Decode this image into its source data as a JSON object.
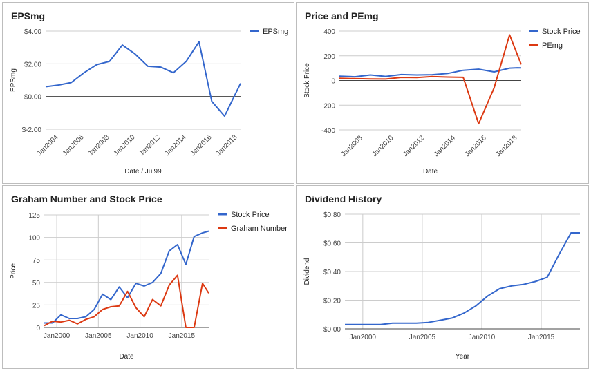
{
  "colors": {
    "blue": "#3366cc",
    "red": "#dc3912",
    "grid": "#cccccc",
    "zero": "#444444"
  },
  "chart_data": [
    {
      "id": "eps",
      "type": "line",
      "title": "EPSmg",
      "xlabel": "Date / Jul99",
      "ylabel": "EPSmg",
      "xlim": [
        2003.0,
        2018.25
      ],
      "ylim": [
        -2,
        4
      ],
      "yticks": [
        {
          "v": 4,
          "label": "$4.00"
        },
        {
          "v": 2,
          "label": "$2.00"
        },
        {
          "v": 0,
          "label": "$0.00"
        },
        {
          "v": -2,
          "label": "$-2.00"
        }
      ],
      "xticks": [
        {
          "v": 2004,
          "label": "Jan2004"
        },
        {
          "v": 2006,
          "label": "Jan2006"
        },
        {
          "v": 2008,
          "label": "Jan2008"
        },
        {
          "v": 2010,
          "label": "Jan2010"
        },
        {
          "v": 2012,
          "label": "Jan2012"
        },
        {
          "v": 2014,
          "label": "Jan2014"
        },
        {
          "v": 2016,
          "label": "Jan2016"
        },
        {
          "v": 2018,
          "label": "Jan2018"
        }
      ],
      "rotate_xticks": true,
      "vgrid": false,
      "zero_line": true,
      "legend": "right",
      "series": [
        {
          "name": "EPSmg",
          "color": "#3366cc",
          "x": [
            2003,
            2004,
            2005,
            2006,
            2007,
            2008,
            2009,
            2010,
            2011,
            2012,
            2013,
            2014,
            2015,
            2016,
            2017,
            2018.25
          ],
          "y": [
            0.6,
            0.7,
            0.85,
            1.45,
            1.95,
            2.15,
            3.15,
            2.6,
            1.85,
            1.8,
            1.45,
            2.15,
            3.35,
            -0.3,
            -1.2,
            0.8
          ]
        }
      ]
    },
    {
      "id": "pe",
      "type": "line",
      "title": "Price and PEmg",
      "xlabel": "Date",
      "ylabel": "Stock Price",
      "xlim": [
        2006.5,
        2018.25
      ],
      "ylim": [
        -400,
        400
      ],
      "yticks": [
        {
          "v": 400,
          "label": "400"
        },
        {
          "v": 200,
          "label": "200"
        },
        {
          "v": 0,
          "label": "0"
        },
        {
          "v": -200,
          "label": "-200"
        },
        {
          "v": -400,
          "label": "-400"
        }
      ],
      "xticks": [
        {
          "v": 2008,
          "label": "Jan2008"
        },
        {
          "v": 2010,
          "label": "Jan2010"
        },
        {
          "v": 2012,
          "label": "Jan2012"
        },
        {
          "v": 2014,
          "label": "Jan2014"
        },
        {
          "v": 2016,
          "label": "Jan2016"
        },
        {
          "v": 2018,
          "label": "Jan2018"
        }
      ],
      "rotate_xticks": true,
      "vgrid": false,
      "zero_line": true,
      "legend": "right",
      "series": [
        {
          "name": "Stock Price",
          "color": "#3366cc",
          "x": [
            2006.5,
            2007.5,
            2008.5,
            2009.5,
            2010.5,
            2011.5,
            2012.5,
            2013.5,
            2014.5,
            2015.5,
            2016.5,
            2017.5,
            2018,
            2018.25
          ],
          "y": [
            35,
            30,
            45,
            33,
            48,
            45,
            47,
            57,
            83,
            92,
            70,
            100,
            103,
            102
          ]
        },
        {
          "name": "PEmg",
          "color": "#dc3912",
          "x": [
            2006.5,
            2007.5,
            2008.5,
            2009.5,
            2010.5,
            2011.5,
            2012.5,
            2013.5,
            2014.5,
            2015.5,
            2016.5,
            2017.5,
            2018.25
          ],
          "y": [
            18,
            15,
            13,
            12,
            25,
            24,
            32,
            28,
            26,
            -350,
            -60,
            370,
            130
          ]
        }
      ]
    },
    {
      "id": "graham",
      "type": "line",
      "title": "Graham Number and Stock Price",
      "xlabel": "Date",
      "ylabel": "Price",
      "xlim": [
        1998.5,
        2018.25
      ],
      "ylim": [
        0,
        125
      ],
      "yticks": [
        {
          "v": 125,
          "label": "125"
        },
        {
          "v": 100,
          "label": "100"
        },
        {
          "v": 75,
          "label": "75"
        },
        {
          "v": 50,
          "label": "50"
        },
        {
          "v": 25,
          "label": "25"
        },
        {
          "v": 0,
          "label": "0"
        }
      ],
      "xticks": [
        {
          "v": 2000,
          "label": "Jan2000"
        },
        {
          "v": 2005,
          "label": "Jan2005"
        },
        {
          "v": 2010,
          "label": "Jan2010"
        },
        {
          "v": 2015,
          "label": "Jan2015"
        }
      ],
      "rotate_xticks": false,
      "vgrid": true,
      "zero_line": false,
      "legend": "right",
      "series": [
        {
          "name": "Stock Price",
          "color": "#3366cc",
          "x": [
            1998.5,
            1999.5,
            2000.5,
            2001.5,
            2002.5,
            2003.5,
            2004.5,
            2005.5,
            2006.5,
            2007.5,
            2008.5,
            2009.5,
            2010.5,
            2011.5,
            2012.5,
            2013.5,
            2014.5,
            2015.5,
            2016.5,
            2017.5,
            2018.25
          ],
          "y": [
            5,
            5,
            14,
            10,
            10,
            12,
            20,
            37,
            31,
            45,
            33,
            49,
            46,
            50,
            60,
            85,
            92,
            70,
            101,
            105,
            107
          ]
        },
        {
          "name": "Graham Number",
          "color": "#dc3912",
          "x": [
            1998.5,
            1999.5,
            2000.5,
            2001.5,
            2002.5,
            2003.5,
            2004.5,
            2005.5,
            2006.5,
            2007.5,
            2008.5,
            2009.5,
            2010.5,
            2011.5,
            2012.5,
            2013.5,
            2014.5,
            2015.5,
            2016.5,
            2017.5,
            2018.25
          ],
          "y": [
            2,
            7,
            6,
            8,
            4,
            9,
            12,
            20,
            23,
            24,
            40,
            22,
            12,
            31,
            24,
            47,
            58,
            0,
            0,
            49,
            38
          ]
        }
      ]
    },
    {
      "id": "div",
      "type": "line",
      "title": "Dividend History",
      "xlabel": "Year",
      "ylabel": "Dividend",
      "xlim": [
        1998.5,
        2018.25
      ],
      "ylim": [
        0,
        0.8
      ],
      "yticks": [
        {
          "v": 0.8,
          "label": "$0.80"
        },
        {
          "v": 0.6,
          "label": "$0.60"
        },
        {
          "v": 0.4,
          "label": "$0.40"
        },
        {
          "v": 0.2,
          "label": "$0.20"
        },
        {
          "v": 0,
          "label": "$0.00"
        }
      ],
      "xticks": [
        {
          "v": 2000,
          "label": "Jan2000"
        },
        {
          "v": 2005,
          "label": "Jan2005"
        },
        {
          "v": 2010,
          "label": "Jan2010"
        },
        {
          "v": 2015,
          "label": "Jan2015"
        }
      ],
      "rotate_xticks": false,
      "vgrid": true,
      "zero_line": false,
      "legend": "none",
      "series": [
        {
          "name": "",
          "color": "#3366cc",
          "x": [
            1998.5,
            1999.5,
            2000.5,
            2001.5,
            2002.5,
            2003.5,
            2004.5,
            2005.5,
            2006.5,
            2007.5,
            2008.5,
            2009.5,
            2010.5,
            2011.5,
            2012.5,
            2013.5,
            2014.5,
            2015.5,
            2016.5,
            2017.5,
            2018.25
          ],
          "y": [
            0.03,
            0.03,
            0.03,
            0.03,
            0.04,
            0.04,
            0.04,
            0.045,
            0.06,
            0.075,
            0.11,
            0.16,
            0.23,
            0.28,
            0.3,
            0.31,
            0.33,
            0.36,
            0.52,
            0.67,
            0.67
          ]
        }
      ]
    }
  ]
}
